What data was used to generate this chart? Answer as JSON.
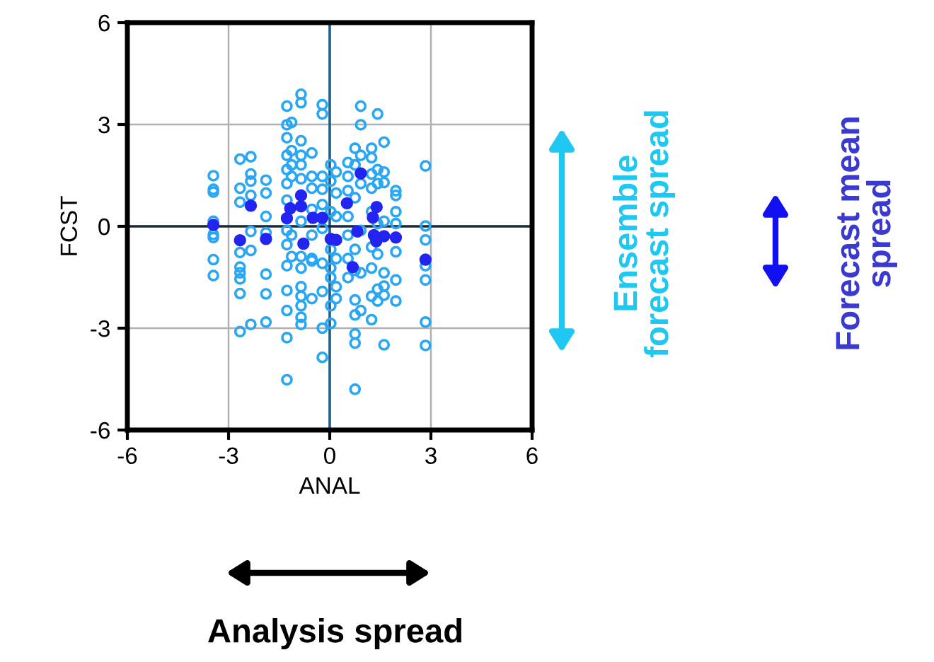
{
  "chart_data": {
    "type": "scatter",
    "xlabel": "ANAL",
    "ylabel": "FCST",
    "xlim": [
      -6,
      6
    ],
    "ylim": [
      -6,
      6
    ],
    "xticks": [
      -6,
      -3,
      0,
      3,
      6
    ],
    "yticks": [
      -6,
      -3,
      0,
      3,
      6
    ],
    "grid": true,
    "marker": "circle",
    "ref_lines": [
      {
        "axis": "x",
        "value": 0,
        "color": "#1f5f8f"
      },
      {
        "axis": "y",
        "value": 0,
        "color": "#1a2a3a"
      }
    ],
    "annotations": [
      "Ensemble forecast spread",
      "Forecast mean spread",
      "Analysis spread"
    ],
    "series": [
      {
        "color": "#2aa6f2",
        "x": [
          -3.45,
          -3.45,
          -3.45,
          -3.45,
          -3.45,
          -3.45,
          -3.45,
          -3.45,
          -2.66,
          -2.66,
          -2.66,
          -2.66,
          -2.66,
          -2.66,
          -2.66,
          -2.66,
          -2.66,
          -2.34,
          -2.34,
          -2.34,
          -2.34,
          -2.34,
          -2.34,
          -2.34,
          -1.89,
          -1.89,
          -1.89,
          -1.89,
          -1.89,
          -1.89,
          -1.89,
          -1.27,
          -1.27,
          -1.27,
          -1.27,
          -1.27,
          -1.27,
          -1.27,
          -1.27,
          -1.27,
          -1.27,
          -1.27,
          -1.27,
          -1.27,
          -1.27,
          -1.13,
          -1.13,
          -1.13,
          -1.13,
          -1.13,
          -1.13,
          -0.85,
          -0.85,
          -0.85,
          -0.85,
          -0.85,
          -0.85,
          -0.85,
          -0.85,
          -0.85,
          -0.85,
          -0.85,
          -0.85,
          -0.85,
          -0.85,
          -0.53,
          -0.53,
          -0.53,
          -0.53,
          -0.53,
          -0.53,
          -0.53,
          -0.53,
          -0.22,
          -0.22,
          -0.22,
          -0.22,
          -0.22,
          -0.22,
          -0.22,
          -0.22,
          -0.22,
          -0.22,
          0.03,
          0.03,
          0.03,
          0.03,
          0.03,
          0.03,
          0.03,
          0.03,
          0.19,
          0.19,
          0.19,
          0.19,
          0.19,
          0.19,
          0.54,
          0.54,
          0.54,
          0.54,
          0.54,
          0.54,
          0.54,
          0.75,
          0.75,
          0.75,
          0.75,
          0.75,
          0.75,
          0.75,
          0.75,
          0.75,
          0.75,
          0.92,
          0.92,
          0.92,
          0.92,
          0.92,
          0.92,
          0.92,
          1.24,
          1.24,
          1.24,
          1.24,
          1.24,
          1.24,
          1.24,
          1.24,
          1.24,
          1.42,
          1.42,
          1.42,
          1.42,
          1.42,
          1.42,
          1.42,
          1.61,
          1.61,
          1.61,
          1.61,
          1.61,
          1.61,
          1.61,
          1.61,
          1.96,
          1.96,
          1.96,
          1.96,
          1.96,
          1.96,
          1.96,
          2.84,
          2.84,
          2.84,
          2.84,
          2.84,
          2.84,
          2.84
        ],
        "values": [
          1.49,
          1.09,
          1.01,
          0.15,
          -0.24,
          -0.33,
          -0.98,
          -1.45,
          1.98,
          1.12,
          0.71,
          -0.77,
          -1.2,
          -1.37,
          -1.55,
          -1.98,
          -3.1,
          2.05,
          1.54,
          1.33,
          0.91,
          -0.15,
          -0.71,
          -2.89,
          1.36,
          0.98,
          0.29,
          -0.19,
          -1.41,
          -1.99,
          -2.82,
          3.54,
          2.99,
          2.61,
          2.09,
          1.67,
          1.26,
          0.77,
          -0.12,
          -0.54,
          -1.16,
          -1.89,
          -2.48,
          -3.28,
          -4.52,
          3.06,
          2.23,
          1.81,
          1.47,
          -0.26,
          -0.89,
          3.89,
          3.64,
          2.52,
          2.09,
          1.81,
          1.4,
          0.15,
          -0.89,
          -1.23,
          -1.78,
          -2.06,
          -2.34,
          -2.68,
          -2.89,
          2.16,
          1.47,
          1.12,
          0.5,
          -0.26,
          -0.95,
          -1.02,
          -2.13,
          3.58,
          3.31,
          1.47,
          1.09,
          0.64,
          -0.06,
          -1.09,
          -1.92,
          -3.0,
          -3.86,
          1.81,
          1.33,
          0.43,
          -0.68,
          -1.23,
          -1.51,
          -2.34,
          -2.86,
          1.6,
          0.98,
          0.29,
          -0.95,
          -1.78,
          -2.13,
          1.88,
          1.47,
          1.05,
          0.29,
          -0.26,
          -0.95,
          -1.51,
          2.3,
          1.81,
          0.84,
          -0.68,
          -1.3,
          -2.17,
          -2.61,
          -3.17,
          -3.44,
          -4.8,
          3.54,
          2.99,
          2.09,
          1.26,
          -0.12,
          -1.37,
          -2.48,
          2.3,
          2.02,
          1.54,
          1.12,
          0.43,
          -0.61,
          -1.23,
          -2.06,
          -2.75,
          3.31,
          1.67,
          1.26,
          0.08,
          -0.82,
          -1.85,
          -2.2,
          2.48,
          1.6,
          1.29,
          0.15,
          -1.37,
          -1.76,
          -2.03,
          -3.49,
          1.05,
          0.91,
          0.43,
          0.08,
          -0.75,
          -1.58,
          -2.2,
          1.78,
          0.01,
          -0.4,
          -1.16,
          -1.58,
          -2.82,
          -3.51
        ]
      },
      {
        "color": "#2424f0",
        "type": "scatter",
        "x": [
          -3.45,
          -2.66,
          -2.34,
          -1.89,
          -1.27,
          -1.17,
          -0.85,
          -0.85,
          -0.78,
          -0.5,
          -0.22,
          0.03,
          0.19,
          0.51,
          0.68,
          0.92,
          0.82,
          1.28,
          1.39,
          1.31,
          1.38,
          1.61,
          1.96,
          2.84
        ],
        "values": [
          0.04,
          -0.41,
          0.61,
          -0.37,
          0.24,
          0.53,
          0.91,
          0.59,
          -0.51,
          0.25,
          0.25,
          -0.37,
          -0.4,
          0.68,
          -1.2,
          1.56,
          -0.15,
          0.26,
          0.57,
          -0.26,
          -0.44,
          -0.29,
          -0.33,
          -0.98
        ]
      }
    ]
  }
}
